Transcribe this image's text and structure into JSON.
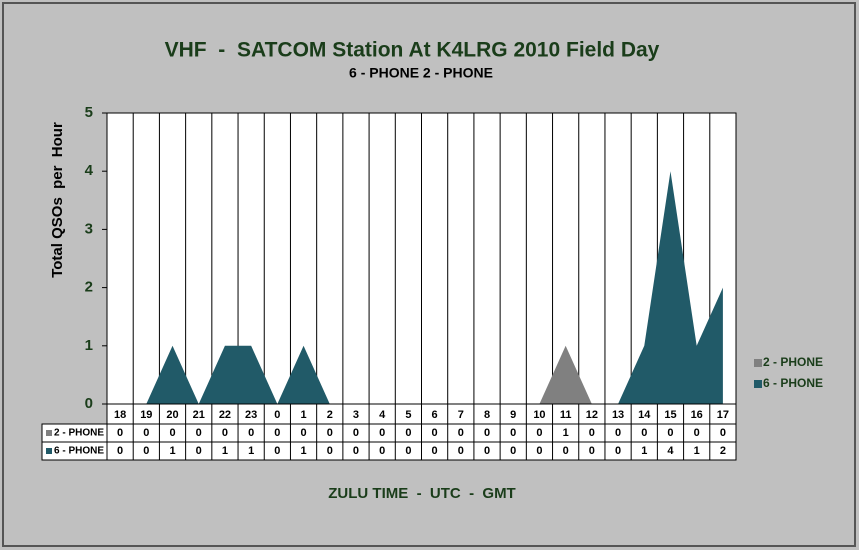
{
  "chart_data": {
    "type": "area",
    "title": "VHF  -  SATCOM Station At K4LRG 2010 Field Day",
    "subtitle": "6 - PHONE 2 - PHONE",
    "y_label": "Total QSOs  per  Hour",
    "x_label": "ZULU TIME  -  UTC  -  GMT",
    "categories": [
      "18",
      "19",
      "20",
      "21",
      "22",
      "23",
      "0",
      "1",
      "2",
      "3",
      "4",
      "5",
      "6",
      "7",
      "8",
      "9",
      "10",
      "11",
      "12",
      "13",
      "14",
      "15",
      "16",
      "17"
    ],
    "series": [
      {
        "name": "2 - PHONE",
        "color": "#808080",
        "values": [
          0,
          0,
          0,
          0,
          0,
          0,
          0,
          0,
          0,
          0,
          0,
          0,
          0,
          0,
          0,
          0,
          0,
          1,
          0,
          0,
          0,
          0,
          0,
          0
        ]
      },
      {
        "name": "6 - PHONE",
        "color": "#215a68",
        "values": [
          0,
          0,
          1,
          0,
          1,
          1,
          0,
          1,
          0,
          0,
          0,
          0,
          0,
          0,
          0,
          0,
          0,
          0,
          0,
          0,
          1,
          4,
          1,
          2
        ]
      }
    ],
    "ylim": [
      0,
      5
    ],
    "yticks": [
      0,
      1,
      2,
      3,
      4,
      5
    ],
    "data_table": true
  }
}
